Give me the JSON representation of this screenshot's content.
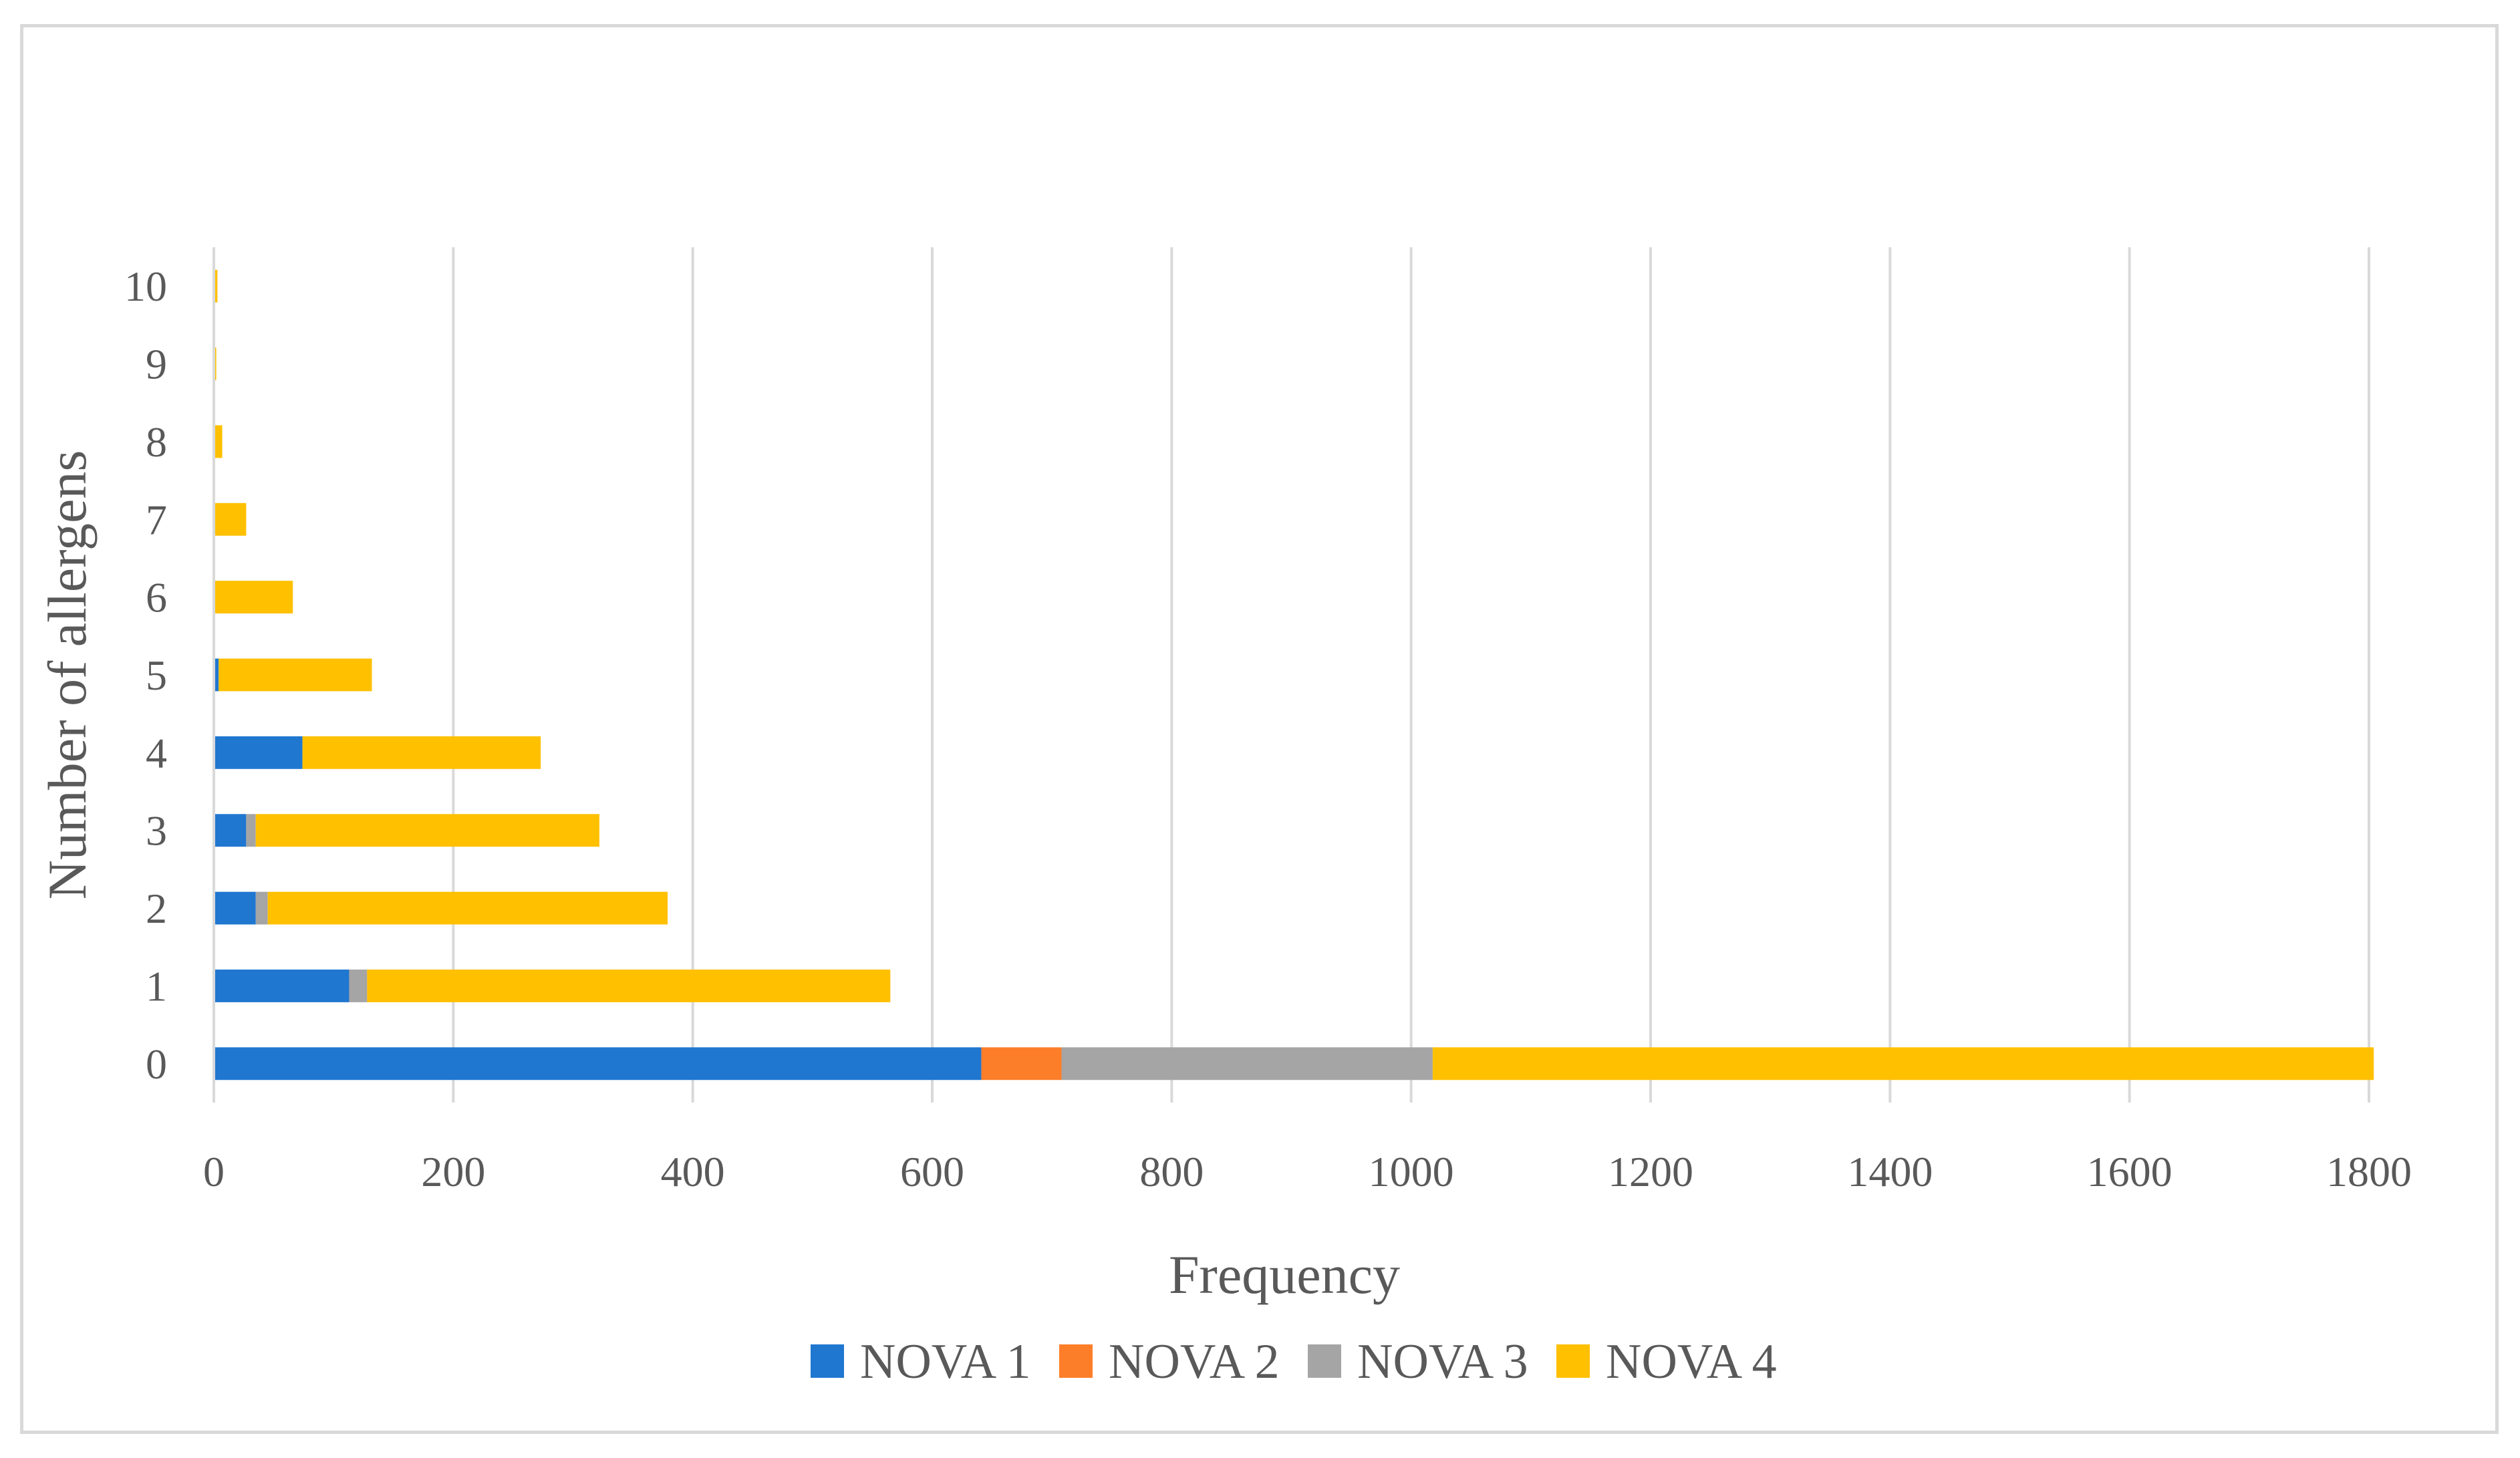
{
  "chart_data": {
    "type": "bar",
    "orientation": "horizontal",
    "stacked": true,
    "title": "",
    "xlabel": "Frequency",
    "ylabel": "Number of allergens",
    "categories": [
      "0",
      "1",
      "2",
      "3",
      "4",
      "5",
      "6",
      "7",
      "8",
      "9",
      "10"
    ],
    "xlim": [
      0,
      1800
    ],
    "xticks": [
      "0",
      "200",
      "400",
      "600",
      "800",
      "1000",
      "1200",
      "1400",
      "1600",
      "1800"
    ],
    "grid": "vertical",
    "legend_position": "bottom",
    "series": [
      {
        "name": "NOVA 1",
        "color": "#1f77d0",
        "values": [
          641,
          113,
          35,
          27,
          74,
          4,
          0,
          0,
          0,
          0,
          0
        ]
      },
      {
        "name": "NOVA 2",
        "color": "#fd7e29",
        "values": [
          67,
          0,
          0,
          0,
          0,
          0,
          0,
          0,
          0,
          0,
          0
        ]
      },
      {
        "name": "NOVA 3",
        "color": "#a5a5a5",
        "values": [
          310,
          15,
          10,
          8,
          0,
          0,
          0,
          0,
          0,
          0,
          0
        ]
      },
      {
        "name": "NOVA 4",
        "color": "#ffc000",
        "values": [
          786,
          437,
          334,
          287,
          199,
          128,
          66,
          27,
          7,
          2,
          3
        ]
      }
    ]
  }
}
